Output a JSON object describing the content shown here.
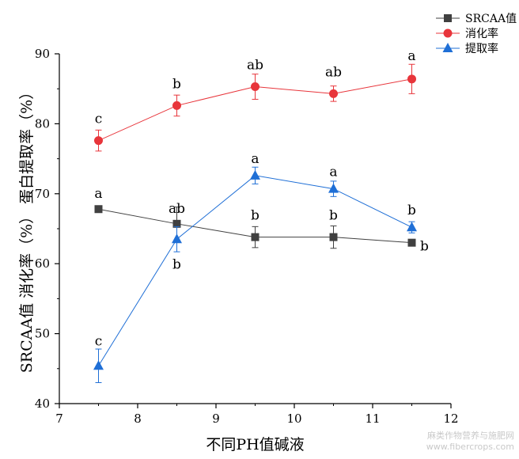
{
  "chart_data": {
    "type": "line",
    "xlabel": "不同PH值碱液",
    "ylabel": "SRCAA值  消化率（%）  蛋白提取率（%）",
    "xlim": [
      7,
      12
    ],
    "ylim": [
      40,
      90
    ],
    "x_ticks": [
      7,
      8,
      9,
      10,
      11,
      12
    ],
    "y_ticks": [
      40,
      50,
      60,
      70,
      80,
      90
    ],
    "grid": false,
    "legend_position": "top-right",
    "x": [
      7.5,
      8.5,
      9.5,
      10.5,
      11.5
    ],
    "series": [
      {
        "name": "SRCAA值",
        "color": "#404040",
        "marker": "square",
        "values": [
          67.8,
          65.7,
          63.8,
          63.8,
          63.0
        ],
        "errors": [
          0.3,
          2.4,
          1.5,
          1.6,
          0.3
        ],
        "labels": [
          "a",
          "ab",
          "b",
          "b",
          "b"
        ]
      },
      {
        "name": "消化率",
        "color": "#e8353b",
        "marker": "circle",
        "values": [
          77.6,
          82.6,
          85.3,
          84.3,
          86.4
        ],
        "errors": [
          1.5,
          1.5,
          1.8,
          1.1,
          2.1
        ],
        "labels": [
          "c",
          "b",
          "ab",
          "ab",
          "a"
        ]
      },
      {
        "name": "提取率",
        "color": "#1f6fd6",
        "marker": "triangle",
        "values": [
          45.4,
          63.5,
          72.6,
          70.7,
          65.2
        ],
        "errors": [
          2.4,
          1.8,
          1.2,
          1.1,
          0.8
        ],
        "labels": [
          "c",
          "b",
          "a",
          "a",
          "b"
        ]
      }
    ]
  },
  "watermark": {
    "line1": "麻类作物营养与施肥网",
    "line2": "www.fibercrops.com"
  }
}
